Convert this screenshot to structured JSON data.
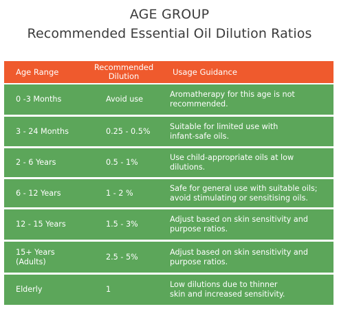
{
  "title": {
    "line1": "AGE GROUP",
    "line2": "Recommended Essential Oil Dilution Ratios"
  },
  "colors": {
    "header_bg": "#ef5a2d",
    "row_bg": "#5ca65a",
    "text_light": "#ffffff",
    "title_text": "#3a3a3a"
  },
  "table": {
    "headers": {
      "age": "Age Range",
      "dilution_line1": "Recommended",
      "dilution_line2": "Dilution",
      "guidance": "Usage Guidance"
    },
    "rows": [
      {
        "age_line1": "0 -3 Months",
        "age_line2": "",
        "dilution": "Avoid use",
        "guidance_line1": "Aromatherapy for this age is not",
        "guidance_line2": "recommended."
      },
      {
        "age_line1": "3 - 24 Months",
        "age_line2": "",
        "dilution": "0.25 - 0.5%",
        "guidance_line1": "Suitable for limited use with",
        "guidance_line2": "infant-safe oils."
      },
      {
        "age_line1": "2 - 6 Years",
        "age_line2": "",
        "dilution": "0.5 - 1%",
        "guidance_line1": "Use child-appropriate oils at low",
        "guidance_line2": "dilutions."
      },
      {
        "age_line1": "6 - 12 Years",
        "age_line2": "",
        "dilution": "1 - 2 %",
        "guidance_line1": "Safe for general use with suitable oils;",
        "guidance_line2": "avoid stimulating or sensitising oils."
      },
      {
        "age_line1": "12 - 15 Years",
        "age_line2": "",
        "dilution": "1.5 - 3%",
        "guidance_line1": "Adjust based on skin sensitivity and",
        "guidance_line2": "purpose ratios."
      },
      {
        "age_line1": "15+ Years",
        "age_line2": "(Adults)",
        "dilution": "2.5 - 5%",
        "guidance_line1": "Adjust based on skin sensitivity and",
        "guidance_line2": "purpose ratios."
      },
      {
        "age_line1": "Elderly",
        "age_line2": "",
        "dilution": "1",
        "guidance_line1": "Low dilutions due to thinner",
        "guidance_line2": "skin and increased sensitivity."
      }
    ]
  }
}
